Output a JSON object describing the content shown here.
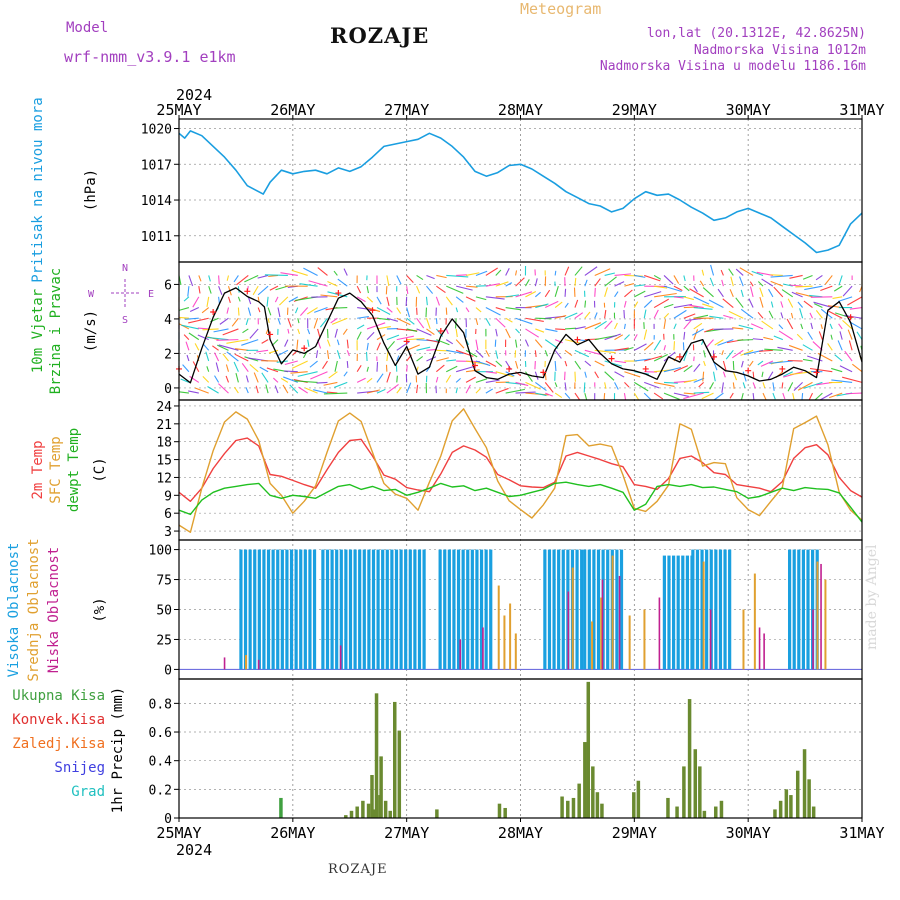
{
  "header": {
    "model_label": "Model",
    "model_name": "wrf-nmm_v3.9.1 e1km",
    "station": "ROZAJE",
    "meteogram": "Meteogram",
    "lonlat": "lon,lat (20.1312E, 42.8625N)",
    "elevation": "Nadmorska Visina 1012m",
    "model_elevation": "Nadmorska Visina u modelu 1186.16m",
    "footer_station": "ROZAJE",
    "credit": "made by Angel"
  },
  "colors": {
    "pressure": "#1a9ee0",
    "wind_black": "#000000",
    "temp2m": "#f04040",
    "sfc_temp": "#e0a030",
    "dewpt": "#20c020",
    "cloud_high": "#1aa0e0",
    "cloud_mid": "#e0a030",
    "cloud_low": "#c02090",
    "precip_total": "#40a040",
    "precip_convective": "#e03030",
    "precip_frozen": "#f07020",
    "snow": "#4040e0",
    "hail": "#20c0c0",
    "label_purple": "#a23fbf"
  },
  "chart_data": [
    {
      "type": "line",
      "panel": "pressure",
      "ylabel_main": "Pritisak na nivou mora",
      "ylabel_unit": "(hPa)",
      "x_day_labels": [
        "25MAY",
        "26MAY",
        "27MAY",
        "28MAY",
        "29MAY",
        "30MAY",
        "31MAY"
      ],
      "year_label": "2024",
      "yticks": [
        1011,
        1014,
        1017,
        1020
      ],
      "ylim": [
        1008.8,
        1020.8
      ],
      "xlim": [
        0,
        6
      ],
      "series": [
        {
          "name": "Pritisak na nivou mora",
          "x": [
            0.0,
            0.05,
            0.1,
            0.2,
            0.3,
            0.4,
            0.5,
            0.6,
            0.7,
            0.74,
            0.8,
            0.9,
            1.0,
            1.1,
            1.2,
            1.3,
            1.4,
            1.5,
            1.6,
            1.7,
            1.8,
            1.9,
            2.0,
            2.1,
            2.2,
            2.3,
            2.4,
            2.5,
            2.6,
            2.7,
            2.8,
            2.9,
            3.0,
            3.1,
            3.2,
            3.3,
            3.4,
            3.5,
            3.6,
            3.7,
            3.8,
            3.9,
            4.0,
            4.1,
            4.2,
            4.3,
            4.4,
            4.5,
            4.6,
            4.7,
            4.8,
            4.9,
            5.0,
            5.1,
            5.2,
            5.3,
            5.4,
            5.5,
            5.6,
            5.7,
            5.8,
            5.9,
            6.0
          ],
          "y": [
            1019.6,
            1019.2,
            1019.8,
            1019.4,
            1018.5,
            1017.6,
            1016.5,
            1015.2,
            1014.7,
            1014.5,
            1015.5,
            1016.5,
            1016.2,
            1016.4,
            1016.5,
            1016.2,
            1016.7,
            1016.4,
            1016.8,
            1017.6,
            1018.5,
            1018.7,
            1018.9,
            1019.1,
            1019.6,
            1019.2,
            1018.5,
            1017.6,
            1016.4,
            1016.0,
            1016.3,
            1016.9,
            1017.0,
            1016.6,
            1016.0,
            1015.4,
            1014.7,
            1014.2,
            1013.7,
            1013.5,
            1013.0,
            1013.3,
            1014.1,
            1014.7,
            1014.4,
            1014.5,
            1014.0,
            1013.4,
            1012.9,
            1012.3,
            1012.5,
            1013.0,
            1013.3,
            1012.9,
            1012.5,
            1011.8,
            1011.1,
            1010.4,
            1009.6,
            1009.8,
            1010.2,
            1012.0,
            1012.9
          ]
        }
      ]
    },
    {
      "type": "line",
      "panel": "wind",
      "ylabel_main_1": "10m Vjetar",
      "ylabel_main_2": "Brzina i Pravac",
      "ylabel_unit": "(m/s)",
      "compass": {
        "n": "N",
        "s": "S",
        "e": "E",
        "w": "W"
      },
      "yticks": [
        0,
        2,
        4,
        6
      ],
      "ylim": [
        -0.7,
        7.3
      ],
      "xlim": [
        0,
        6
      ],
      "series": [
        {
          "name": "10m Vjetar",
          "x": [
            0.0,
            0.1,
            0.2,
            0.3,
            0.4,
            0.5,
            0.6,
            0.7,
            0.75,
            0.8,
            0.9,
            1.0,
            1.1,
            1.2,
            1.3,
            1.4,
            1.5,
            1.6,
            1.7,
            1.8,
            1.9,
            2.0,
            2.1,
            2.2,
            2.3,
            2.4,
            2.5,
            2.6,
            2.7,
            2.8,
            2.9,
            3.0,
            3.1,
            3.2,
            3.3,
            3.4,
            3.5,
            3.6,
            3.7,
            3.8,
            3.9,
            4.0,
            4.1,
            4.2,
            4.3,
            4.4,
            4.5,
            4.6,
            4.7,
            4.8,
            4.9,
            5.0,
            5.1,
            5.2,
            5.3,
            5.4,
            5.5,
            5.6,
            5.7,
            5.8,
            5.9,
            6.0
          ],
          "y": [
            0.8,
            0.3,
            2.3,
            4.1,
            5.5,
            5.8,
            5.3,
            5.0,
            4.7,
            2.8,
            1.4,
            2.2,
            2.0,
            2.4,
            3.8,
            5.2,
            5.5,
            5.0,
            4.2,
            2.6,
            1.3,
            2.4,
            0.8,
            1.2,
            3.0,
            4.0,
            3.2,
            1.0,
            0.6,
            0.5,
            0.8,
            0.9,
            0.7,
            0.6,
            2.2,
            3.1,
            2.5,
            2.8,
            2.0,
            1.4,
            1.1,
            1.0,
            0.8,
            0.5,
            1.8,
            1.5,
            2.6,
            2.8,
            1.5,
            1.0,
            0.9,
            0.7,
            0.4,
            0.5,
            0.8,
            1.2,
            1.0,
            0.6,
            4.5,
            5.0,
            3.8,
            1.5
          ]
        }
      ]
    },
    {
      "type": "line",
      "panel": "temperature",
      "ylabel_2m": "2m Temp",
      "ylabel_sfc": "SFC Temp",
      "ylabel_dew": "dewpt Temp",
      "ylabel_unit": "(C)",
      "yticks": [
        3,
        6,
        9,
        12,
        15,
        18,
        21,
        24
      ],
      "ylim": [
        1.5,
        25.0
      ],
      "xlim": [
        0,
        6
      ],
      "series": [
        {
          "name": "2m Temp",
          "x": [
            0.0,
            0.1,
            0.2,
            0.3,
            0.4,
            0.5,
            0.6,
            0.7,
            0.8,
            0.9,
            1.0,
            1.1,
            1.2,
            1.3,
            1.4,
            1.5,
            1.6,
            1.7,
            1.8,
            1.9,
            2.0,
            2.1,
            2.2,
            2.3,
            2.4,
            2.5,
            2.6,
            2.7,
            2.8,
            2.9,
            3.0,
            3.1,
            3.2,
            3.3,
            3.4,
            3.5,
            3.6,
            3.7,
            3.8,
            3.9,
            4.0,
            4.1,
            4.2,
            4.3,
            4.4,
            4.5,
            4.6,
            4.7,
            4.8,
            4.9,
            5.0,
            5.1,
            5.2,
            5.3,
            5.4,
            5.5,
            5.6,
            5.7,
            5.8,
            5.9,
            6.0
          ],
          "y": [
            9.5,
            8.0,
            10.2,
            13.5,
            16.0,
            18.2,
            18.6,
            17.3,
            12.5,
            12.2,
            11.5,
            10.8,
            10.2,
            13.3,
            16.2,
            18.2,
            18.4,
            15.6,
            12.4,
            11.7,
            10.3,
            9.9,
            9.6,
            12.6,
            16.2,
            17.3,
            16.6,
            15.4,
            12.5,
            11.6,
            10.6,
            10.4,
            10.3,
            11.2,
            15.6,
            16.2,
            15.6,
            15.0,
            14.3,
            13.8,
            10.8,
            10.5,
            10.0,
            11.8,
            15.2,
            15.6,
            14.5,
            12.8,
            12.5,
            10.8,
            10.5,
            10.2,
            9.6,
            11.3,
            15.2,
            17.0,
            17.5,
            15.8,
            12.0,
            9.8,
            8.7
          ]
        },
        {
          "name": "SFC Temp",
          "x": [
            0.0,
            0.1,
            0.2,
            0.3,
            0.4,
            0.5,
            0.6,
            0.7,
            0.8,
            0.9,
            1.0,
            1.1,
            1.2,
            1.3,
            1.4,
            1.5,
            1.6,
            1.7,
            1.8,
            1.9,
            2.0,
            2.1,
            2.2,
            2.3,
            2.4,
            2.5,
            2.6,
            2.7,
            2.8,
            2.9,
            3.0,
            3.1,
            3.2,
            3.3,
            3.4,
            3.5,
            3.6,
            3.7,
            3.8,
            3.9,
            4.0,
            4.1,
            4.2,
            4.3,
            4.4,
            4.5,
            4.6,
            4.7,
            4.8,
            4.9,
            5.0,
            5.1,
            5.2,
            5.3,
            5.4,
            5.5,
            5.6,
            5.7,
            5.8,
            5.9,
            6.0
          ],
          "y": [
            4.0,
            2.8,
            10.2,
            16.5,
            21.3,
            23.0,
            21.8,
            18.2,
            11.0,
            9.0,
            6.0,
            8.0,
            10.6,
            16.2,
            21.5,
            22.8,
            21.4,
            16.2,
            11.0,
            9.2,
            8.5,
            6.5,
            11.2,
            15.6,
            21.5,
            23.5,
            20.2,
            17.0,
            11.4,
            8.1,
            6.6,
            5.2,
            7.4,
            10.2,
            19.0,
            19.2,
            17.3,
            17.6,
            17.2,
            12.4,
            6.8,
            6.3,
            8.0,
            10.7,
            21.0,
            20.1,
            13.9,
            14.5,
            14.3,
            8.6,
            6.6,
            5.6,
            8.0,
            10.3,
            20.2,
            21.2,
            22.3,
            17.5,
            9.5,
            6.5,
            4.8
          ]
        },
        {
          "name": "dewpt Temp",
          "x": [
            0.0,
            0.1,
            0.2,
            0.3,
            0.4,
            0.5,
            0.6,
            0.7,
            0.8,
            0.9,
            1.0,
            1.1,
            1.2,
            1.3,
            1.4,
            1.5,
            1.6,
            1.7,
            1.8,
            1.9,
            2.0,
            2.1,
            2.2,
            2.3,
            2.4,
            2.5,
            2.6,
            2.7,
            2.8,
            2.9,
            3.0,
            3.1,
            3.2,
            3.3,
            3.4,
            3.5,
            3.6,
            3.7,
            3.8,
            3.9,
            4.0,
            4.1,
            4.2,
            4.3,
            4.4,
            4.5,
            4.6,
            4.7,
            4.8,
            4.9,
            5.0,
            5.1,
            5.2,
            5.3,
            5.4,
            5.5,
            5.6,
            5.7,
            5.8,
            5.9,
            6.0
          ],
          "y": [
            6.5,
            5.8,
            8.2,
            9.5,
            10.2,
            10.5,
            10.8,
            11.0,
            9.0,
            8.5,
            9.0,
            8.8,
            8.5,
            9.5,
            10.5,
            10.8,
            10.0,
            10.5,
            9.8,
            10.0,
            9.0,
            9.5,
            10.2,
            11.0,
            10.4,
            10.6,
            9.8,
            10.2,
            9.5,
            8.8,
            9.0,
            9.5,
            10.0,
            11.0,
            11.2,
            10.8,
            10.5,
            10.8,
            10.2,
            9.5,
            6.5,
            7.5,
            10.5,
            10.8,
            10.5,
            10.8,
            10.3,
            10.4,
            10.0,
            9.6,
            8.5,
            8.8,
            9.5,
            10.2,
            9.8,
            10.3,
            10.1,
            10.0,
            9.4,
            7.0,
            4.5
          ]
        }
      ]
    },
    {
      "type": "bar",
      "panel": "clouds",
      "ylabel_high": "Visoka Oblacnost",
      "ylabel_mid": "Srednja Oblacnost",
      "ylabel_low": "Niska Oblacnost",
      "ylabel_unit": "(%)",
      "yticks": [
        0,
        25,
        50,
        75,
        100
      ],
      "ylim": [
        -8,
        108
      ],
      "xlim": [
        0,
        6
      ],
      "cloud_segments": [
        {
          "x0": 0.53,
          "x1": 1.18,
          "value": 100
        },
        {
          "x0": 1.25,
          "x1": 2.15,
          "value": 100
        },
        {
          "x0": 2.28,
          "x1": 2.75,
          "value": 100
        },
        {
          "x0": 3.2,
          "x1": 3.55,
          "value": 100
        },
        {
          "x0": 3.55,
          "x1": 3.9,
          "value": 100
        },
        {
          "x0": 4.25,
          "x1": 4.5,
          "value": 95
        },
        {
          "x0": 4.5,
          "x1": 4.85,
          "value": 100
        },
        {
          "x0": 5.35,
          "x1": 5.6,
          "value": 100
        }
      ],
      "mid_bars": [
        {
          "x": 0.58,
          "v": 12
        },
        {
          "x": 2.8,
          "v": 70
        },
        {
          "x": 2.85,
          "v": 45
        },
        {
          "x": 2.9,
          "v": 55
        },
        {
          "x": 2.95,
          "v": 30
        },
        {
          "x": 3.45,
          "v": 85
        },
        {
          "x": 3.62,
          "v": 40
        },
        {
          "x": 3.7,
          "v": 60
        },
        {
          "x": 3.8,
          "v": 95
        },
        {
          "x": 3.95,
          "v": 45
        },
        {
          "x": 4.08,
          "v": 50
        },
        {
          "x": 4.6,
          "v": 90
        },
        {
          "x": 4.95,
          "v": 50
        },
        {
          "x": 5.05,
          "v": 80
        },
        {
          "x": 5.6,
          "v": 90
        },
        {
          "x": 5.67,
          "v": 75
        }
      ],
      "low_bars": [
        {
          "x": 0.38,
          "v": 10
        },
        {
          "x": 0.68,
          "v": 8
        },
        {
          "x": 1.4,
          "v": 20
        },
        {
          "x": 2.45,
          "v": 25
        },
        {
          "x": 2.65,
          "v": 35
        },
        {
          "x": 3.4,
          "v": 65
        },
        {
          "x": 3.7,
          "v": 75
        },
        {
          "x": 3.85,
          "v": 78
        },
        {
          "x": 4.2,
          "v": 60
        },
        {
          "x": 4.65,
          "v": 50
        },
        {
          "x": 5.08,
          "v": 35
        },
        {
          "x": 5.12,
          "v": 30
        },
        {
          "x": 5.55,
          "v": 50
        },
        {
          "x": 5.62,
          "v": 88
        }
      ]
    },
    {
      "type": "bar",
      "panel": "precipitation",
      "labels": [
        "Ukupna Kisa",
        "Konvek.Kisa",
        "Zaledj.Kisa",
        "Snijeg",
        "Grad"
      ],
      "ylabel_unit": "1hr Precip (mm)",
      "yticks": [
        0,
        0.2,
        0.4,
        0.6,
        0.8
      ],
      "ylim": [
        0,
        0.97
      ],
      "xlim": [
        0,
        6
      ],
      "bars": [
        {
          "x": 0.88,
          "v": 0.14,
          "c": "total"
        },
        {
          "x": 1.45,
          "v": 0.02
        },
        {
          "x": 1.5,
          "v": 0.05
        },
        {
          "x": 1.55,
          "v": 0.08
        },
        {
          "x": 1.6,
          "v": 0.12
        },
        {
          "x": 1.65,
          "v": 0.1
        },
        {
          "x": 1.7,
          "v": 0.06
        },
        {
          "x": 1.75,
          "v": 0.16
        },
        {
          "x": 1.8,
          "v": 0.12
        },
        {
          "x": 1.68,
          "v": 0.3
        },
        {
          "x": 1.72,
          "v": 0.87
        },
        {
          "x": 1.76,
          "v": 0.43
        },
        {
          "x": 1.84,
          "v": 0.05
        },
        {
          "x": 1.88,
          "v": 0.81
        },
        {
          "x": 1.92,
          "v": 0.61
        },
        {
          "x": 2.25,
          "v": 0.06
        },
        {
          "x": 2.8,
          "v": 0.1
        },
        {
          "x": 2.85,
          "v": 0.07
        },
        {
          "x": 3.35,
          "v": 0.15
        },
        {
          "x": 3.4,
          "v": 0.12
        },
        {
          "x": 3.45,
          "v": 0.14
        },
        {
          "x": 3.5,
          "v": 0.24
        },
        {
          "x": 3.55,
          "v": 0.53
        },
        {
          "x": 3.58,
          "v": 0.95
        },
        {
          "x": 3.62,
          "v": 0.36
        },
        {
          "x": 3.66,
          "v": 0.18
        },
        {
          "x": 3.7,
          "v": 0.1
        },
        {
          "x": 3.98,
          "v": 0.18
        },
        {
          "x": 4.02,
          "v": 0.26
        },
        {
          "x": 4.28,
          "v": 0.14
        },
        {
          "x": 4.36,
          "v": 0.08
        },
        {
          "x": 4.42,
          "v": 0.36
        },
        {
          "x": 4.47,
          "v": 0.83
        },
        {
          "x": 4.52,
          "v": 0.48
        },
        {
          "x": 4.56,
          "v": 0.36
        },
        {
          "x": 4.6,
          "v": 0.05
        },
        {
          "x": 4.7,
          "v": 0.08
        },
        {
          "x": 4.75,
          "v": 0.12
        },
        {
          "x": 5.22,
          "v": 0.06
        },
        {
          "x": 5.27,
          "v": 0.12
        },
        {
          "x": 5.32,
          "v": 0.2
        },
        {
          "x": 5.36,
          "v": 0.16
        },
        {
          "x": 5.42,
          "v": 0.33
        },
        {
          "x": 5.48,
          "v": 0.48
        },
        {
          "x": 5.52,
          "v": 0.27
        },
        {
          "x": 5.56,
          "v": 0.08
        }
      ]
    }
  ]
}
